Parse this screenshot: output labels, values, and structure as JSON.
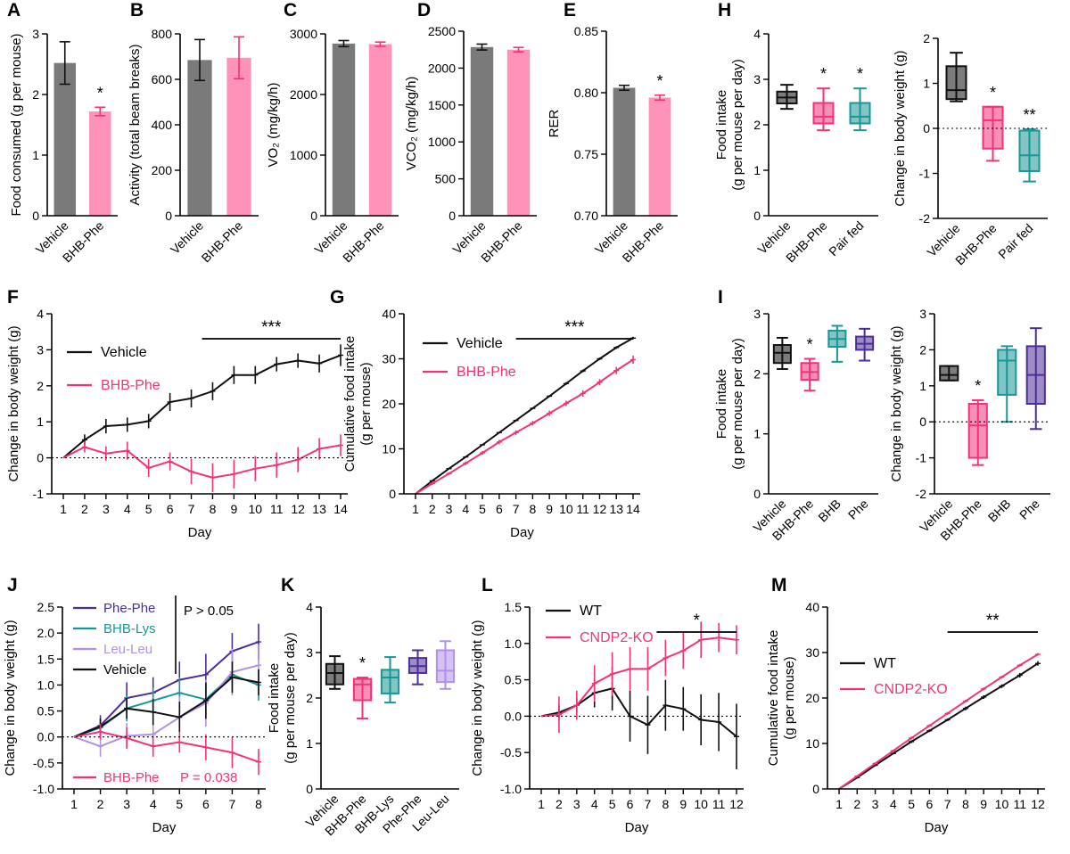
{
  "colors": {
    "vehicle": "#7a7a7a",
    "bhbphe": "#ff92b8",
    "black": "#111111",
    "pink": "#f0337a",
    "teal": "#1a9696",
    "purple": "#4d2d96",
    "lavender": "#b290e8"
  },
  "chart_data": [
    {
      "id": "A",
      "panel": "A",
      "type": "bar",
      "ylabel": "Food consumed (g per mouse)",
      "ylim": [
        0,
        3
      ],
      "yticks": [
        "0",
        "1",
        "2",
        "3"
      ],
      "bars": [
        {
          "label": "Vehicle",
          "value": 2.52,
          "err": 0.35,
          "color": "vehicle"
        },
        {
          "label": "BHB-Phe",
          "value": 1.72,
          "err": 0.07,
          "color": "bhbphe",
          "star": "*"
        }
      ]
    },
    {
      "id": "B",
      "panel": "B",
      "type": "bar",
      "ylabel": "Activity (total beam breaks)",
      "ylim": [
        0,
        800
      ],
      "yticks": [
        "0",
        "200",
        "400",
        "600",
        "800"
      ],
      "bars": [
        {
          "label": "Vehicle",
          "value": 685,
          "err": 90,
          "color": "vehicle"
        },
        {
          "label": "BHB-Phe",
          "value": 695,
          "err": 92,
          "color": "bhbphe"
        }
      ]
    },
    {
      "id": "C",
      "panel": "C",
      "type": "bar",
      "ylabel": "VO₂ (mg/kg/h)",
      "ylim": [
        0,
        3000
      ],
      "yticks": [
        "0",
        "1000",
        "2000",
        "3000"
      ],
      "bars": [
        {
          "label": "Vehicle",
          "value": 2840,
          "err": 50,
          "color": "vehicle"
        },
        {
          "label": "BHB-Phe",
          "value": 2830,
          "err": 35,
          "color": "bhbphe"
        }
      ]
    },
    {
      "id": "D",
      "panel": "D",
      "type": "bar",
      "ylabel": "VCO₂ (mg/kg/h)",
      "ylim": [
        0,
        2500
      ],
      "yticks": [
        "0",
        "500",
        "1000",
        "1500",
        "2000",
        "2500"
      ],
      "bars": [
        {
          "label": "Vehicle",
          "value": 2285,
          "err": 40,
          "color": "vehicle"
        },
        {
          "label": "BHB-Phe",
          "value": 2250,
          "err": 30,
          "color": "bhbphe"
        }
      ]
    },
    {
      "id": "E",
      "panel": "E",
      "type": "bar",
      "ylabel": "RER",
      "ylim": [
        0.7,
        0.85
      ],
      "yticks": [
        "0.70",
        "0.75",
        "0.80",
        "0.85"
      ],
      "bars": [
        {
          "label": "Vehicle",
          "value": 0.804,
          "err": 0.002,
          "color": "vehicle"
        },
        {
          "label": "BHB-Phe",
          "value": 0.796,
          "err": 0.002,
          "color": "bhbphe",
          "star": "*"
        }
      ]
    },
    {
      "id": "H1",
      "panel": "H",
      "type": "box",
      "ylabel": [
        "Food intake",
        "(g per mouse per day)"
      ],
      "ylim": [
        0,
        4
      ],
      "yticks": [
        "0",
        "1",
        "2",
        "3",
        "4"
      ],
      "boxes": [
        {
          "label": "Vehicle",
          "min": 2.35,
          "q1": 2.47,
          "med": 2.6,
          "q3": 2.73,
          "max": 2.88,
          "color": "black"
        },
        {
          "label": "BHB-Phe",
          "min": 1.88,
          "q1": 2.03,
          "med": 2.18,
          "q3": 2.48,
          "max": 2.8,
          "color": "pink",
          "star": "*"
        },
        {
          "label": "Pair fed",
          "min": 1.88,
          "q1": 2.03,
          "med": 2.18,
          "q3": 2.48,
          "max": 2.8,
          "color": "teal",
          "star": "*"
        }
      ]
    },
    {
      "id": "H2",
      "panel": "",
      "type": "box",
      "ylabel": [
        "Change in body weight (g)"
      ],
      "ylim": [
        -2,
        2
      ],
      "yticks": [
        "-2",
        "-1",
        "0",
        "1",
        "2"
      ],
      "zero": true,
      "boxes": [
        {
          "label": "Vehicle",
          "min": 0.6,
          "q1": 0.65,
          "med": 0.85,
          "q3": 1.38,
          "max": 1.68,
          "color": "black"
        },
        {
          "label": "BHB-Phe",
          "min": -0.72,
          "q1": -0.45,
          "med": 0.18,
          "q3": 0.48,
          "max": 0.48,
          "color": "pink",
          "star": "*"
        },
        {
          "label": "Pair fed",
          "min": -1.18,
          "q1": -0.95,
          "med": -0.6,
          "q3": -0.05,
          "max": -0.02,
          "color": "teal",
          "star": "**"
        }
      ]
    },
    {
      "id": "F",
      "panel": "F",
      "type": "line",
      "xlabel": "Day",
      "ylabel": [
        "Change in body weight (g)"
      ],
      "ylim": [
        -1,
        4
      ],
      "yticks": [
        "-1",
        "0",
        "1",
        "2",
        "3",
        "4"
      ],
      "zero": true,
      "x": [
        1,
        2,
        3,
        4,
        5,
        6,
        7,
        8,
        9,
        10,
        11,
        12,
        13,
        14
      ],
      "series": [
        {
          "name": "Vehicle",
          "color": "black",
          "values": [
            0,
            0.5,
            0.88,
            0.92,
            1.02,
            1.55,
            1.65,
            1.85,
            2.3,
            2.3,
            2.6,
            2.7,
            2.62,
            2.85
          ],
          "err": [
            0,
            0.15,
            0.2,
            0.2,
            0.2,
            0.25,
            0.25,
            0.25,
            0.25,
            0.25,
            0.2,
            0.2,
            0.25,
            0.3
          ]
        },
        {
          "name": "BHB-Phe",
          "color": "pink",
          "values": [
            0,
            0.3,
            0.12,
            0.2,
            -0.28,
            -0.1,
            -0.38,
            -0.55,
            -0.45,
            -0.3,
            -0.2,
            -0.05,
            0.25,
            0.35
          ],
          "err": [
            0,
            0.15,
            0.2,
            0.25,
            0.25,
            0.25,
            0.35,
            0.4,
            0.4,
            0.35,
            0.35,
            0.35,
            0.3,
            0.3
          ]
        }
      ],
      "sig": {
        "label": "***",
        "from": 7.5,
        "to": 14
      }
    },
    {
      "id": "G",
      "panel": "G",
      "type": "line",
      "xlabel": "Day",
      "ylabel": [
        "Cumulative food intake",
        "(g per mouse)"
      ],
      "ylim": [
        0,
        40
      ],
      "yticks": [
        "0",
        "10",
        "20",
        "30",
        "40"
      ],
      "x": [
        1,
        2,
        3,
        4,
        5,
        6,
        7,
        8,
        9,
        10,
        11,
        12,
        13,
        14
      ],
      "series": [
        {
          "name": "Vehicle",
          "color": "black",
          "values": [
            0,
            2.9,
            5.6,
            8.2,
            10.9,
            13.6,
            16.3,
            19,
            21.7,
            24.5,
            27.3,
            30,
            32.5,
            34.6
          ],
          "err": [
            0,
            0.1,
            0.1,
            0.1,
            0.15,
            0.15,
            0.2,
            0.2,
            0.2,
            0.3,
            0.3,
            0.3,
            0.3,
            0.3
          ]
        },
        {
          "name": "BHB-Phe",
          "color": "pink",
          "values": [
            0,
            2.3,
            4.5,
            6.8,
            9.1,
            11.5,
            13.6,
            15.7,
            17.9,
            20.1,
            22.3,
            24.8,
            27.4,
            29.8
          ],
          "err": [
            0,
            0.3,
            0.3,
            0.4,
            0.4,
            0.5,
            0.5,
            0.5,
            0.6,
            0.6,
            0.7,
            0.7,
            0.8,
            0.9
          ]
        }
      ],
      "sig": {
        "label": "***",
        "from": 7,
        "to": 14
      }
    },
    {
      "id": "I1",
      "panel": "I",
      "type": "box",
      "ylabel": [
        "Food intake",
        "(g per mouse per day)"
      ],
      "ylim": [
        0,
        3
      ],
      "yticks": [
        "0",
        "1",
        "2",
        "3"
      ],
      "boxes": [
        {
          "label": "Vehicle",
          "min": 2.08,
          "q1": 2.18,
          "med": 2.35,
          "q3": 2.48,
          "max": 2.6,
          "color": "black"
        },
        {
          "label": "BHB-Phe",
          "min": 1.72,
          "q1": 1.9,
          "med": 2.03,
          "q3": 2.18,
          "max": 2.25,
          "color": "pink",
          "star": "*"
        },
        {
          "label": "BHB",
          "min": 2.2,
          "q1": 2.45,
          "med": 2.58,
          "q3": 2.72,
          "max": 2.8,
          "color": "teal"
        },
        {
          "label": "Phe",
          "min": 2.22,
          "q1": 2.4,
          "med": 2.5,
          "q3": 2.62,
          "max": 2.75,
          "color": "purple"
        }
      ]
    },
    {
      "id": "I2",
      "panel": "",
      "type": "box",
      "ylabel": [
        "Change in body weight (g)"
      ],
      "ylim": [
        -2,
        3
      ],
      "yticks": [
        "-2",
        "-1",
        "0",
        "1",
        "2",
        "3"
      ],
      "zero": true,
      "boxes": [
        {
          "label": "Vehicle",
          "min": 1.15,
          "q1": 1.15,
          "med": 1.3,
          "q3": 1.55,
          "max": 1.55,
          "color": "black"
        },
        {
          "label": "BHB-Phe",
          "min": -1.2,
          "q1": -1.0,
          "med": -0.1,
          "q3": 0.5,
          "max": 0.6,
          "color": "pink",
          "star": "*"
        },
        {
          "label": "BHB",
          "min": 0.0,
          "q1": 0.75,
          "med": 1.7,
          "q3": 2.0,
          "max": 2.1,
          "color": "teal"
        },
        {
          "label": "Phe",
          "min": -0.2,
          "q1": 0.5,
          "med": 1.3,
          "q3": 2.1,
          "max": 2.6,
          "color": "purple"
        }
      ]
    },
    {
      "id": "J",
      "panel": "J",
      "type": "line",
      "xlabel": "Day",
      "ylabel": [
        "Change in body weight (g)"
      ],
      "ylim": [
        -1,
        2.5
      ],
      "yticks": [
        "-1.0",
        "-0.5",
        "0.0",
        "0.5",
        "1.0",
        "1.5",
        "2.0",
        "2.5"
      ],
      "zero": true,
      "x": [
        1,
        2,
        3,
        4,
        5,
        6,
        7,
        8
      ],
      "series": [
        {
          "name": "Phe-Phe",
          "color": "purple",
          "values": [
            0,
            0.22,
            0.75,
            0.85,
            1.1,
            1.2,
            1.65,
            1.83
          ],
          "err": [
            0,
            0.2,
            0.3,
            0.3,
            0.35,
            0.4,
            0.35,
            0.35
          ]
        },
        {
          "name": "BHB-Lys",
          "color": "teal",
          "values": [
            0,
            0.18,
            0.55,
            0.7,
            0.85,
            0.72,
            1.2,
            1.0
          ],
          "err": [
            0,
            0.15,
            0.25,
            0.25,
            0.3,
            0.3,
            0.3,
            0.3
          ]
        },
        {
          "name": "Leu-Leu",
          "color": "lavender",
          "values": [
            0,
            -0.18,
            0.02,
            0.05,
            0.38,
            0.65,
            1.25,
            1.38
          ],
          "err": [
            0,
            0.2,
            0.25,
            0.3,
            0.4,
            0.45,
            0.45,
            0.4
          ]
        },
        {
          "name": "Vehicle",
          "color": "black",
          "values": [
            0,
            0.2,
            0.55,
            0.48,
            0.38,
            0.7,
            1.15,
            1.05
          ],
          "err": [
            0,
            0.15,
            0.2,
            0.25,
            0.3,
            0.35,
            0.3,
            0.25
          ]
        },
        {
          "name": "BHB-Phe",
          "color": "pink",
          "values": [
            0,
            0.1,
            -0.02,
            -0.18,
            -0.1,
            -0.2,
            -0.3,
            -0.48
          ],
          "err": [
            0,
            0.15,
            0.2,
            0.2,
            0.2,
            0.25,
            0.3,
            0.25
          ]
        }
      ],
      "annotations": {
        "top": "P > 0.05",
        "bottom_name": "BHB-Phe",
        "bottom_p": "P = 0.038"
      }
    },
    {
      "id": "K",
      "panel": "K",
      "type": "box",
      "ylabel": [
        "Food intake",
        "(g per mouse per day)"
      ],
      "ylim": [
        0,
        4
      ],
      "yticks": [
        "0",
        "1",
        "2",
        "3",
        "4"
      ],
      "boxes": [
        {
          "label": "Vehicle",
          "min": 2.2,
          "q1": 2.3,
          "med": 2.55,
          "q3": 2.75,
          "max": 2.92,
          "color": "black"
        },
        {
          "label": "BHB-Phe",
          "min": 1.55,
          "q1": 1.95,
          "med": 2.3,
          "q3": 2.42,
          "max": 2.45,
          "color": "pink",
          "star": "*"
        },
        {
          "label": "BHB-Lys",
          "min": 1.9,
          "q1": 2.1,
          "med": 2.45,
          "q3": 2.62,
          "max": 2.9,
          "color": "teal"
        },
        {
          "label": "Phe-Phe",
          "min": 2.3,
          "q1": 2.55,
          "med": 2.7,
          "q3": 2.88,
          "max": 3.05,
          "color": "purple"
        },
        {
          "label": "Leu-Leu",
          "min": 2.2,
          "q1": 2.35,
          "med": 2.6,
          "q3": 3.05,
          "max": 3.25,
          "color": "lavender"
        }
      ]
    },
    {
      "id": "L",
      "panel": "L",
      "type": "line",
      "xlabel": "Day",
      "ylabel": [
        "Change in body weight (g)"
      ],
      "ylim": [
        -1,
        1.5
      ],
      "yticks": [
        "-1.0",
        "-0.5",
        "0.0",
        "0.5",
        "1.0",
        "1.5"
      ],
      "zero": true,
      "x": [
        1,
        2,
        3,
        4,
        5,
        6,
        7,
        8,
        9,
        10,
        11,
        12
      ],
      "series": [
        {
          "name": "WT",
          "color": "black",
          "values": [
            0,
            0.05,
            0.15,
            0.32,
            0.38,
            0.0,
            -0.12,
            0.15,
            0.1,
            -0.05,
            -0.08,
            -0.28
          ],
          "err": [
            0,
            0.1,
            0.1,
            0.2,
            0.3,
            0.35,
            0.4,
            0.35,
            0.3,
            0.35,
            0.4,
            0.45
          ]
        },
        {
          "name": "CNDP2-KO",
          "color": "pink",
          "values": [
            0,
            0.02,
            0.15,
            0.45,
            0.58,
            0.65,
            0.65,
            0.8,
            0.9,
            1.05,
            1.08,
            1.05
          ],
          "err": [
            0,
            0.25,
            0.2,
            0.25,
            0.3,
            0.3,
            0.3,
            0.25,
            0.25,
            0.25,
            0.2,
            0.2
          ]
        }
      ],
      "sig": {
        "label": "*",
        "from": 7.5,
        "to": 12
      }
    },
    {
      "id": "M",
      "panel": "M",
      "type": "line",
      "xlabel": "Day",
      "ylabel": [
        "Cumulative food intake",
        "(g per mouse)"
      ],
      "ylim": [
        0,
        40
      ],
      "yticks": [
        "0",
        "10",
        "20",
        "30",
        "40"
      ],
      "x": [
        1,
        2,
        3,
        4,
        5,
        6,
        7,
        8,
        9,
        10,
        11,
        12
      ],
      "series": [
        {
          "name": "WT",
          "color": "black",
          "values": [
            0,
            2.5,
            5.2,
            7.8,
            10.4,
            12.8,
            15.2,
            17.7,
            20.2,
            22.6,
            25.0,
            27.6
          ],
          "err": [
            0,
            0.2,
            0.2,
            0.2,
            0.3,
            0.3,
            0.3,
            0.4,
            0.4,
            0.4,
            0.5,
            0.5
          ]
        },
        {
          "name": "CNDP2-KO",
          "color": "pink",
          "values": [
            0,
            2.8,
            5.6,
            8.4,
            11.2,
            13.9,
            16.6,
            19.3,
            22.0,
            24.6,
            27.2,
            29.6
          ],
          "err": [
            0,
            0.2,
            0.2,
            0.2,
            0.3,
            0.3,
            0.3,
            0.3,
            0.3,
            0.3,
            0.3,
            0.3
          ]
        }
      ],
      "sig": {
        "label": "**",
        "from": 7,
        "to": 12
      }
    }
  ]
}
